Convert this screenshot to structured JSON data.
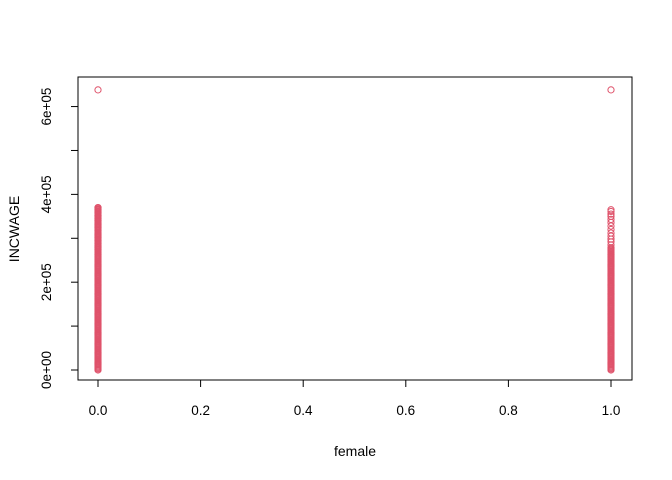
{
  "chart_data": {
    "type": "scatter",
    "title": "",
    "xlabel": "female",
    "ylabel": "INCWAGE",
    "xlim": [
      0,
      1
    ],
    "ylim": [
      0,
      640000
    ],
    "x_ticks": [
      0,
      0.2,
      0.4,
      0.6,
      0.8,
      1.0
    ],
    "x_tick_labels": [
      "0.0",
      "0.2",
      "0.4",
      "0.6",
      "0.8",
      "1.0"
    ],
    "y_ticks": [
      0,
      200000,
      400000,
      600000
    ],
    "y_tick_labels": [
      "0e+00",
      "2e+05",
      "4e+05",
      "6e+05"
    ],
    "y_minor_ticks": [
      100000,
      300000,
      500000
    ],
    "grid": false,
    "legend": "none",
    "point_color": "#DF536B",
    "marker": "open-circle",
    "series": [
      {
        "x_value": 0,
        "dense_range": [
          0,
          370000
        ],
        "points": [
          {
            "x": 0,
            "y": 638000
          },
          {
            "x": 0,
            "y": 370000
          },
          {
            "x": 0,
            "y": 366000
          },
          {
            "x": 0,
            "y": 362000
          },
          {
            "x": 0,
            "y": 358000
          },
          {
            "x": 0,
            "y": 352000
          },
          {
            "x": 0,
            "y": 345000
          },
          {
            "x": 0,
            "y": 340000
          },
          {
            "x": 0,
            "y": 332000
          },
          {
            "x": 0,
            "y": 325000
          },
          {
            "x": 0,
            "y": 318000
          },
          {
            "x": 0,
            "y": 310000
          },
          {
            "x": 0,
            "y": 302000
          },
          {
            "x": 0,
            "y": 295000
          },
          {
            "x": 0,
            "y": 288000
          },
          {
            "x": 0,
            "y": 280000
          },
          {
            "x": 0,
            "y": 275000
          }
        ]
      },
      {
        "x_value": 1,
        "dense_range": [
          0,
          280000
        ],
        "points": [
          {
            "x": 1,
            "y": 638000
          },
          {
            "x": 1,
            "y": 365000
          },
          {
            "x": 1,
            "y": 361000
          },
          {
            "x": 1,
            "y": 355000
          },
          {
            "x": 1,
            "y": 350000
          },
          {
            "x": 1,
            "y": 343000
          },
          {
            "x": 1,
            "y": 336000
          },
          {
            "x": 1,
            "y": 328000
          },
          {
            "x": 1,
            "y": 320000
          },
          {
            "x": 1,
            "y": 312000
          },
          {
            "x": 1,
            "y": 305000
          },
          {
            "x": 1,
            "y": 298000
          },
          {
            "x": 1,
            "y": 292000
          },
          {
            "x": 1,
            "y": 285000
          }
        ]
      }
    ]
  }
}
